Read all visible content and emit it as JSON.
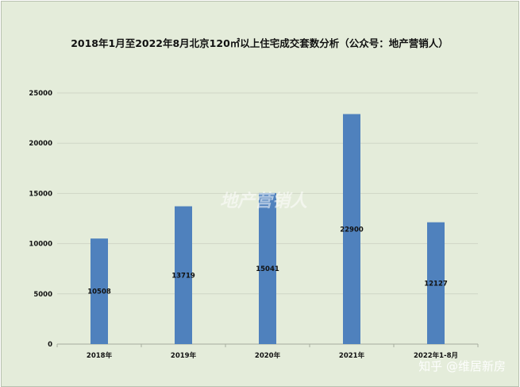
{
  "chart_data": {
    "type": "bar",
    "title": "2018年1月至2022年8月北京120㎡以上住宅成交套数分析（公众号：地产营销人）",
    "categories": [
      "2018年",
      "2019年",
      "2020年",
      "2021年",
      "2022年1-8月"
    ],
    "values": [
      10508,
      13719,
      15041,
      22900,
      12127
    ],
    "data_labels": [
      "10508",
      "13719",
      "15041",
      "22900",
      "12127"
    ],
    "xlabel": "",
    "ylabel": "",
    "ylim": [
      0,
      25000
    ],
    "yticks": [
      0,
      5000,
      10000,
      15000,
      20000,
      25000
    ],
    "ytick_labels": [
      "0",
      "5000",
      "10000",
      "15000",
      "20000",
      "25000"
    ],
    "grid": true,
    "legend": "none",
    "colors": {
      "bar": "#4f81bd",
      "background": "#e4ecda",
      "grid": "#cfd6c6",
      "axis": "#a6ad9e"
    }
  },
  "watermarks": {
    "center": "地产营销人",
    "corner": "知乎 @维居新房"
  }
}
